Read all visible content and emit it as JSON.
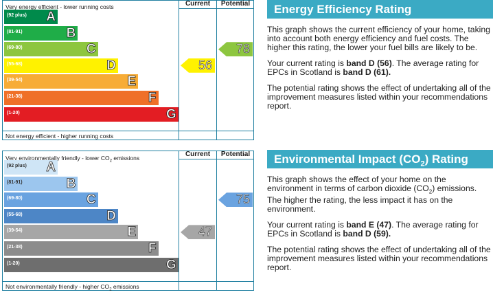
{
  "chart_data": [
    {
      "type": "bar",
      "title": "",
      "top_label": "Very energy efficient - lower running costs",
      "bottom_label": "Not energy efficient - higher running costs",
      "column_headers": [
        "Current",
        "Potential"
      ],
      "bands": [
        {
          "letter": "A",
          "range": "(92 plus)",
          "color": "#008a4b"
        },
        {
          "letter": "B",
          "range": "(81-91)",
          "color": "#1fad48"
        },
        {
          "letter": "C",
          "range": "(69-80)",
          "color": "#8dc63f"
        },
        {
          "letter": "D",
          "range": "(55-68)",
          "color": "#fff200"
        },
        {
          "letter": "E",
          "range": "(39-54)",
          "color": "#f7ac36"
        },
        {
          "letter": "F",
          "range": "(21-38)",
          "color": "#ef7028"
        },
        {
          "letter": "G",
          "range": "(1-20)",
          "color": "#e31d23"
        }
      ],
      "current": {
        "value": 56,
        "band": "D",
        "color": "#fff200"
      },
      "potential": {
        "value": 78,
        "band": "C",
        "color": "#8dc63f"
      }
    },
    {
      "type": "bar",
      "title": "",
      "top_label": "Very environmentally friendly - lower CO",
      "top_label_suffix": " emissions",
      "bottom_label": "Not environmentally friendly - higher CO",
      "bottom_label_suffix": " emissions",
      "co2_sub": "2",
      "column_headers": [
        "Current",
        "Potential"
      ],
      "bands": [
        {
          "letter": "A",
          "range": "(92 plus)",
          "color": "#cfe5f6"
        },
        {
          "letter": "B",
          "range": "(81-91)",
          "color": "#9cc6ee"
        },
        {
          "letter": "C",
          "range": "(69-80)",
          "color": "#6aa3e0"
        },
        {
          "letter": "D",
          "range": "(55-68)",
          "color": "#4d86c6"
        },
        {
          "letter": "E",
          "range": "(39-54)",
          "color": "#a6a6a6"
        },
        {
          "letter": "F",
          "range": "(21-38)",
          "color": "#8c8c8c"
        },
        {
          "letter": "G",
          "range": "(1-20)",
          "color": "#6e6e6e"
        }
      ],
      "current": {
        "value": 47,
        "band": "E",
        "color": "#a6a6a6"
      },
      "potential": {
        "value": 75,
        "band": "C",
        "color": "#6aa3e0"
      }
    }
  ],
  "energy_panel": {
    "title": "Energy Efficiency Rating",
    "p1": "This graph shows the current efficiency of your home, taking into account both energy efficiency and fuel costs. The higher this rating, the lower your fuel bills are likely to be.",
    "p2_pre": "Your current rating is ",
    "p2_b1": "band D (56)",
    "p2_mid": ". The average rating for EPCs in Scotland is ",
    "p2_b2": "band D (61).",
    "p3": "The potential rating shows the effect of undertaking all of the improvement measures listed within your recommendations report."
  },
  "env_panel": {
    "title_pre": "Environmental Impact (CO",
    "title_sub": "2",
    "title_post": ") Rating",
    "p1_pre": "This graph shows the effect of your home on the environment in terms of carbon dioxide (CO",
    "p1_sub": "2",
    "p1_post": ") emissions. The higher the rating, the less impact it has on the environment.",
    "p2_pre": "Your current rating is ",
    "p2_b1": "band E (47)",
    "p2_mid": ". The average rating for EPCs in Scotland is ",
    "p2_b2": "band D (59).",
    "p3": "The potential rating shows the effect of undertaking all of the improvement measures listed within your recommendations report."
  }
}
